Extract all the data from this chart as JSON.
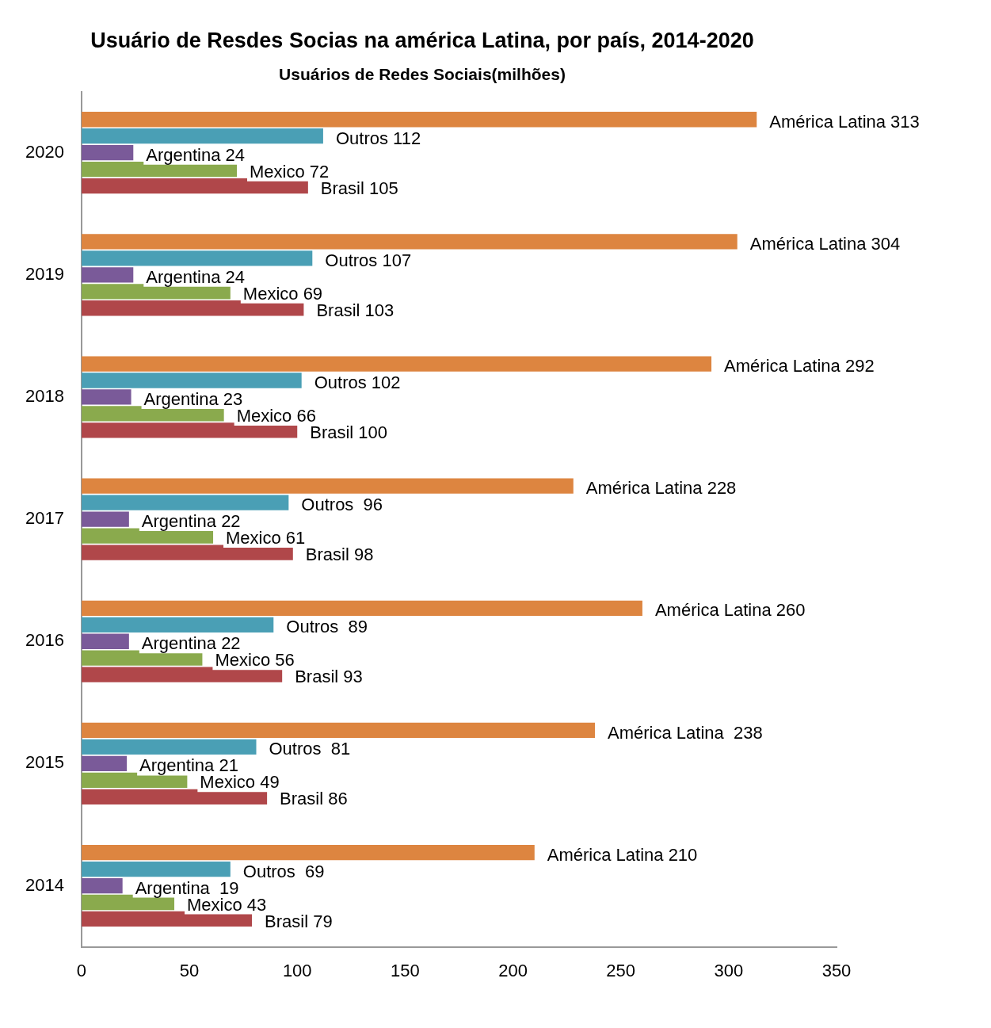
{
  "chart_data": {
    "type": "bar",
    "orientation": "horizontal",
    "title": "Usuário de Resdes Socias na américa Latina, por país, 2014-2020",
    "subtitle": "Usuários de Redes Sociais(milhões)",
    "categories": [
      "2020",
      "2019",
      "2018",
      "2017",
      "2016",
      "2015",
      "2014"
    ],
    "series": [
      {
        "color": "#dd8540",
        "values": [
          313,
          304,
          292,
          228,
          260,
          238,
          210
        ],
        "value_labels": [
          "América Latina 313",
          "América Latina 304",
          "América Latina 292",
          "América Latina 228",
          "América Latina 260",
          "América Latina  238",
          "América Latina 210"
        ]
      },
      {
        "color": "#4a9fb5",
        "values": [
          112,
          107,
          102,
          96,
          89,
          81,
          69
        ],
        "value_labels": [
          "Outros 112",
          "Outros 107",
          "Outros 102",
          "Outros  96",
          "Outros  89",
          "Outros  81",
          "Outros  69"
        ]
      },
      {
        "color": "#7a5a99",
        "values": [
          24,
          24,
          23,
          22,
          22,
          21,
          19
        ],
        "value_labels": [
          "Argentina 24",
          "Argentina 24",
          "Argentina 23",
          "Argentina 22",
          "Argentina 22",
          "Argentina 21",
          "Argentina  19"
        ]
      },
      {
        "color": "#8aaa4d",
        "values": [
          72,
          69,
          66,
          61,
          56,
          49,
          43
        ],
        "value_labels": [
          "Mexico 72",
          "Mexico 69",
          "Mexico 66",
          "Mexico 61",
          "Mexico 56",
          "Mexico 49",
          "Mexico 43"
        ]
      },
      {
        "color": "#b0474a",
        "values": [
          105,
          103,
          100,
          98,
          93,
          86,
          79
        ],
        "value_labels": [
          "Brasil 105",
          "Brasil 103",
          "Brasil 100",
          "Brasil 98",
          "Brasil 93",
          "Brasil 86",
          "Brasil 79"
        ]
      }
    ],
    "xlim": [
      0,
      350
    ],
    "xticks": [
      0,
      50,
      100,
      150,
      200,
      250,
      300,
      350
    ],
    "grid": false,
    "legend": false
  }
}
